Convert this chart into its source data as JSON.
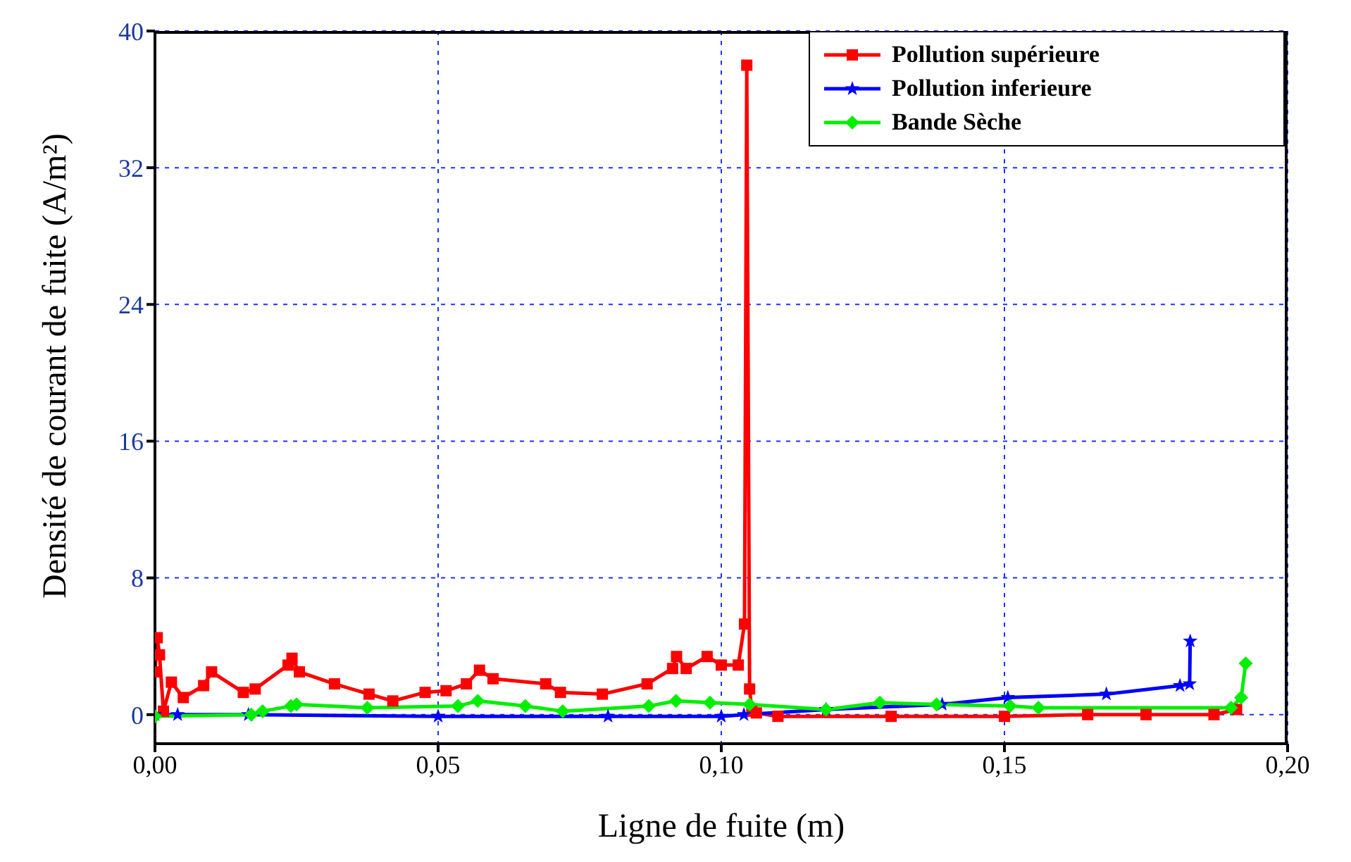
{
  "chart_data": {
    "type": "line",
    "xlabel": "Ligne de fuite (m)",
    "ylabel": "Densité de courant de fuite (A/m²)",
    "xlim": [
      0,
      0.2
    ],
    "ylim": [
      -1.7,
      40
    ],
    "xticks": [
      {
        "value": 0,
        "label": "0,00"
      },
      {
        "value": 0.05,
        "label": "0,05"
      },
      {
        "value": 0.1,
        "label": "0,10"
      },
      {
        "value": 0.15,
        "label": "0,15"
      },
      {
        "value": 0.2,
        "label": "0,20"
      }
    ],
    "yticks": [
      0,
      8,
      16,
      24,
      32,
      40
    ],
    "grid": true,
    "legend": "top right",
    "line_style": "solid",
    "series": [
      {
        "name": "Pollution supérieure",
        "color": "#ff0000",
        "marker": "square",
        "x": [
          0,
          0.0004,
          0.0008,
          0.0015,
          0.0029,
          0.005,
          0.0086,
          0.01,
          0.0156,
          0.0177,
          0.0235,
          0.0242,
          0.0255,
          0.0317,
          0.0378,
          0.042,
          0.0477,
          0.0514,
          0.055,
          0.0573,
          0.0597,
          0.069,
          0.0716,
          0.079,
          0.0869,
          0.0914,
          0.0921,
          0.0938,
          0.0975,
          0.1,
          0.103,
          0.1041,
          0.1045,
          0.105,
          0.1054,
          0.1062,
          0.11,
          0.13,
          0.15,
          0.1647,
          0.175,
          0.187,
          0.191
        ],
        "values": [
          2.5,
          4.5,
          3.5,
          0.2,
          1.9,
          1.0,
          1.7,
          2.5,
          1.3,
          1.5,
          2.9,
          3.3,
          2.5,
          1.8,
          1.2,
          0.8,
          1.3,
          1.4,
          1.8,
          2.6,
          2.1,
          1.8,
          1.3,
          1.2,
          1.8,
          2.7,
          3.4,
          2.7,
          3.4,
          2.9,
          2.9,
          5.3,
          38,
          1.5,
          0.2,
          0.1,
          -0.1,
          -0.1,
          -0.1,
          0,
          0,
          0,
          0.3
        ]
      },
      {
        "name": "Pollution inferieure",
        "color": "#0000ff",
        "marker": "star",
        "x": [
          0,
          0.004,
          0.0165,
          0.05,
          0.08,
          0.1,
          0.104,
          0.1185,
          0.139,
          0.1506,
          0.168,
          0.181,
          0.1827,
          0.1828
        ],
        "values": [
          0,
          0,
          0,
          -0.1,
          -0.1,
          -0.1,
          0,
          0.3,
          0.6,
          1.0,
          1.2,
          1.7,
          1.8,
          4.3
        ]
      },
      {
        "name": "Bande Sèche",
        "color": "#00ee00",
        "marker": "diamond",
        "x": [
          0,
          0.017,
          0.019,
          0.024,
          0.025,
          0.0375,
          0.0535,
          0.057,
          0.0654,
          0.072,
          0.0872,
          0.092,
          0.098,
          0.105,
          0.1185,
          0.128,
          0.138,
          0.151,
          0.156,
          0.19,
          0.1918,
          0.1926
        ],
        "values": [
          -0.1,
          0,
          0.2,
          0.5,
          0.6,
          0.4,
          0.5,
          0.8,
          0.5,
          0.2,
          0.5,
          0.8,
          0.7,
          0.6,
          0.3,
          0.7,
          0.6,
          0.5,
          0.4,
          0.4,
          1.0,
          3.0
        ]
      }
    ]
  }
}
